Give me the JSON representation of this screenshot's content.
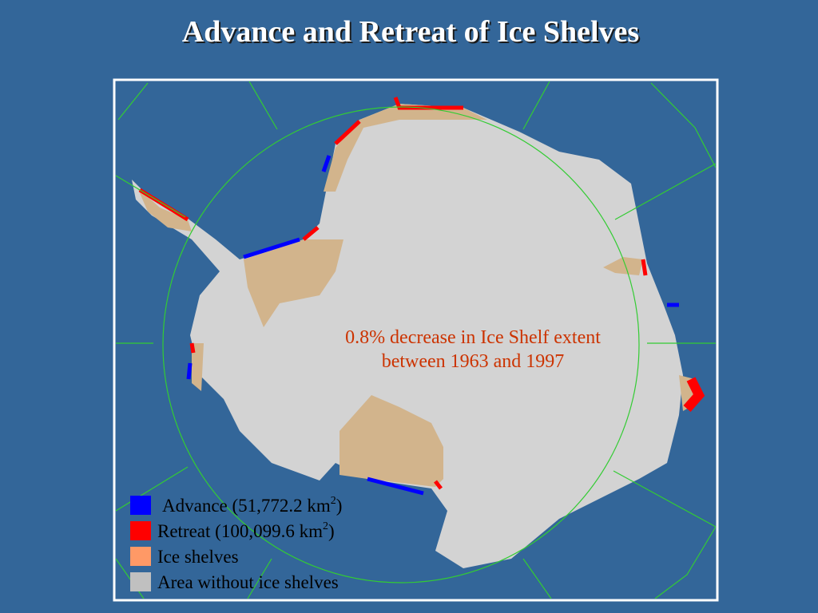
{
  "header": {
    "title": "Advance and Retreat of Ice Shelves"
  },
  "map": {
    "annotation": [
      "0.8% decrease in Ice Shelf extent",
      "between 1963 and 1997"
    ],
    "legend": [
      {
        "text": "Advance (51,772.2 km",
        "superscript": "2",
        "suffix": ")",
        "color": "#0000ff"
      },
      {
        "text": "Retreat (100,099.6 km",
        "superscript": "2",
        "suffix": ")",
        "color": "#ff0000"
      },
      {
        "text": "Ice shelves",
        "color": "#ff9966"
      },
      {
        "text": "Area without ice shelves",
        "color": "#c0c0c0"
      }
    ]
  }
}
